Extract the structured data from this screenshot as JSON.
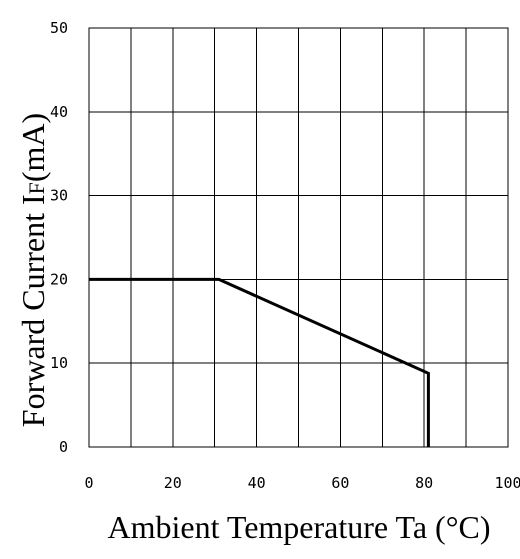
{
  "chart_data": {
    "type": "line",
    "title": "",
    "xlabel": "Ambient Temperature Ta (°C)",
    "ylabel_main": "Forward Current I",
    "ylabel_sub": "F",
    "ylabel_unit": "(mA)",
    "xlim": [
      0,
      100
    ],
    "ylim": [
      0,
      50
    ],
    "x_ticks": [
      0,
      20,
      40,
      60,
      80,
      100
    ],
    "y_ticks": [
      0,
      10,
      20,
      30,
      40,
      50
    ],
    "grid": true,
    "grid_x_step": 10,
    "series": [
      {
        "x": [
          0,
          31,
          81,
          81
        ],
        "y": [
          20,
          20,
          8.8,
          0
        ]
      }
    ]
  }
}
